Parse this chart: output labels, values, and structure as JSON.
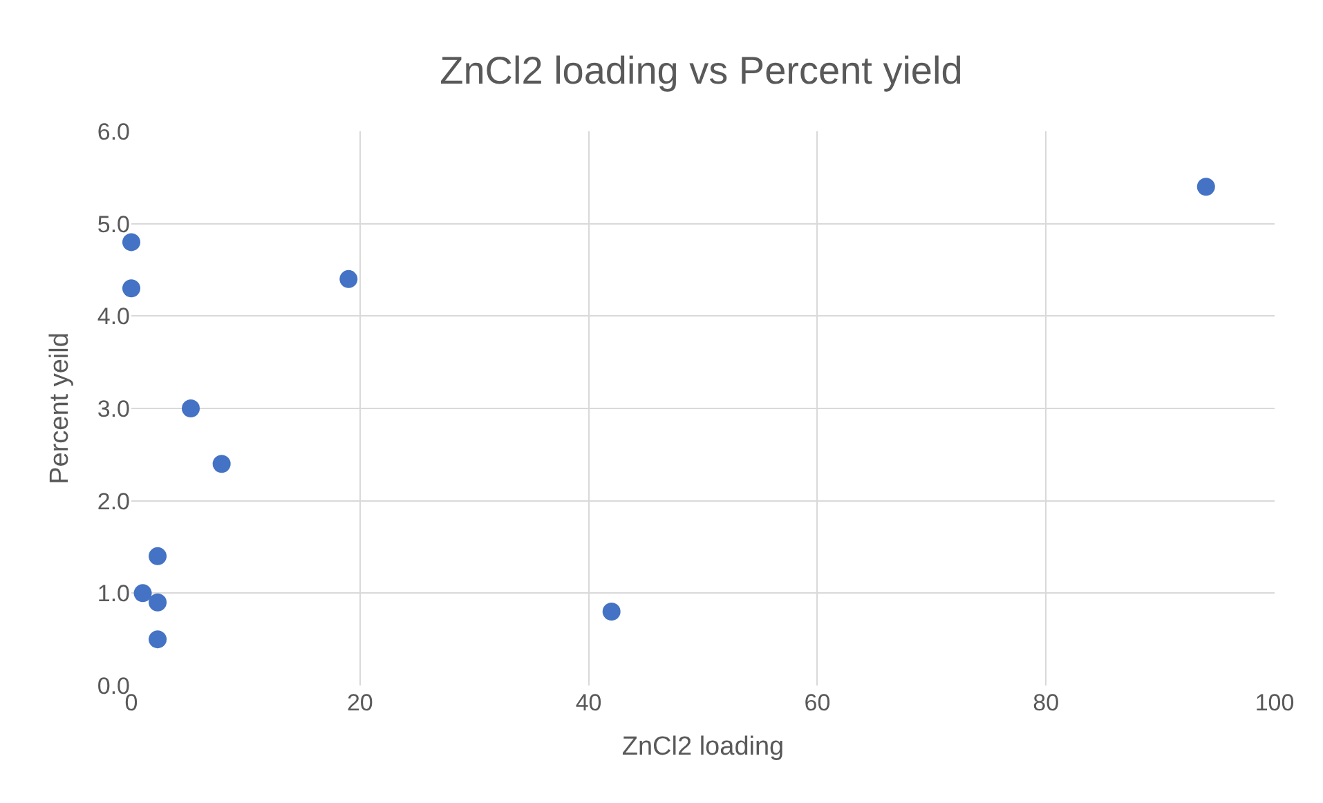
{
  "chart_data": {
    "type": "scatter",
    "title": "ZnCl2 loading vs Percent yield",
    "xlabel": "ZnCl2 loading",
    "ylabel": "Percent yeild",
    "x": [
      0,
      0,
      19,
      5.2,
      7.9,
      2.3,
      1.0,
      2.3,
      2.3,
      42,
      94
    ],
    "values": [
      4.8,
      4.3,
      4.4,
      3.0,
      2.4,
      1.4,
      1.0,
      0.9,
      0.5,
      0.8,
      5.4
    ],
    "color": "#4472c4",
    "marker": "circle",
    "xlim": [
      0,
      100
    ],
    "xticks": [
      0,
      20,
      40,
      60,
      80,
      100
    ],
    "ylim": [
      0,
      6
    ],
    "yticks": [
      {
        "value": 0,
        "label": "0.0"
      },
      {
        "value": 1,
        "label": "1.0"
      },
      {
        "value": 2,
        "label": "2.0"
      },
      {
        "value": 3,
        "label": "3.0"
      },
      {
        "value": 4,
        "label": "4.0"
      },
      {
        "value": 5,
        "label": "5.0"
      },
      {
        "value": 6,
        "label": "6.0"
      }
    ],
    "grid": true
  }
}
